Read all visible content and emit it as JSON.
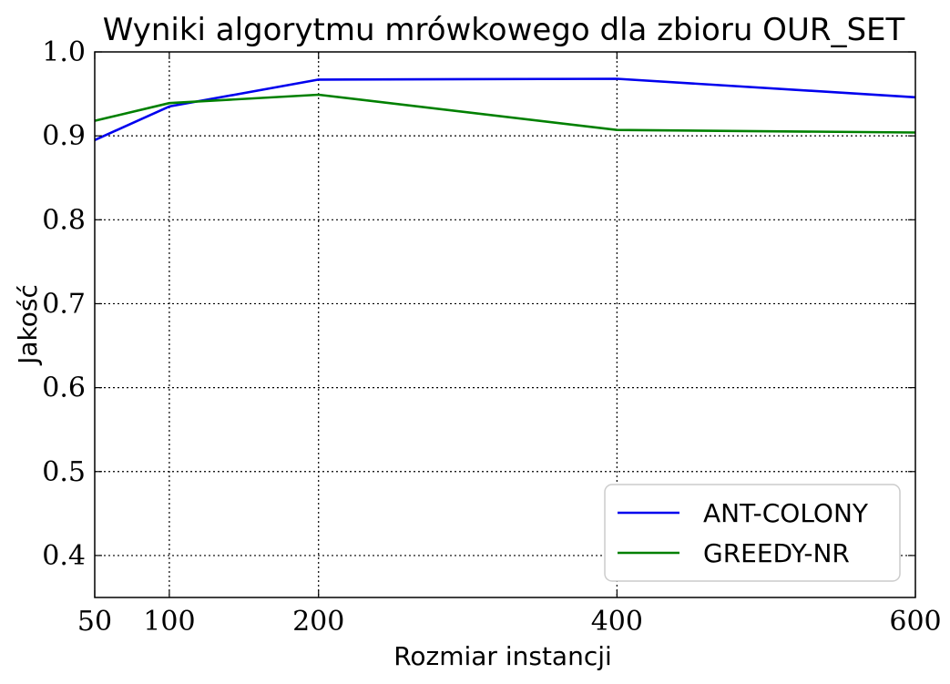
{
  "chart_data": {
    "type": "line",
    "title": "Wyniki algorytmu mrówkowego dla zbioru OUR_SET",
    "xlabel": "Rozmiar instancji",
    "ylabel": "Jakość",
    "x": [
      50,
      100,
      200,
      400,
      600
    ],
    "xticks": [
      50,
      100,
      200,
      400,
      600
    ],
    "xtick_labels": [
      "50",
      "100",
      "200",
      "400",
      "600"
    ],
    "yticks": [
      0.4,
      0.5,
      0.6,
      0.7,
      0.8,
      0.9,
      1.0
    ],
    "ytick_labels": [
      "0.4",
      "0.5",
      "0.6",
      "0.7",
      "0.8",
      "0.9",
      "1.0"
    ],
    "xlim": [
      50,
      600
    ],
    "ylim": [
      0.35,
      1.0
    ],
    "grid": true,
    "legend_position": "lower-right",
    "series": [
      {
        "name": "ANT-COLONY",
        "color": "#0000ee",
        "values": [
          0.895,
          0.935,
          0.967,
          0.968,
          0.946
        ]
      },
      {
        "name": "GREEDY-NR",
        "color": "#008000",
        "values": [
          0.918,
          0.939,
          0.949,
          0.907,
          0.904
        ]
      }
    ]
  }
}
